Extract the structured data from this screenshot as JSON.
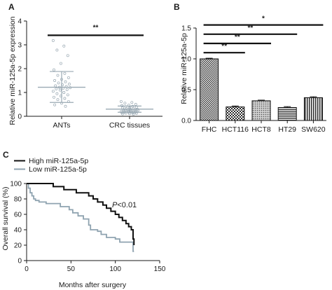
{
  "chart_data": [
    {
      "panel": "A",
      "type": "scatter",
      "categories": [
        "ANTs",
        "CRC tissues"
      ],
      "ylabel": "Relative miR-125a-5p expression",
      "ylim": [
        0,
        4
      ],
      "yticks": [
        "0",
        "1",
        "2",
        "3",
        "4"
      ],
      "summary": [
        {
          "category": "ANTs",
          "mean": 1.22,
          "sd_low": 0.58,
          "sd_high": 1.88
        },
        {
          "category": "CRC tissues",
          "mean": 0.3,
          "sd_low": 0.17,
          "sd_high": 0.43
        }
      ],
      "points": [
        {
          "category": "ANTs",
          "values": [
            3.18,
            2.95,
            2.78,
            2.55,
            2.22,
            1.95,
            1.8,
            1.72,
            1.62,
            1.55,
            1.5,
            1.45,
            1.4,
            1.35,
            1.32,
            1.28,
            1.25,
            1.22,
            1.2,
            1.18,
            1.15,
            1.12,
            1.1,
            1.05,
            1.0,
            0.95,
            0.9,
            0.85,
            0.8,
            0.75,
            0.7,
            0.62,
            0.55,
            0.48,
            0.42
          ]
        },
        {
          "category": "CRC tissues",
          "values": [
            0.62,
            0.58,
            0.55,
            0.5,
            0.47,
            0.45,
            0.42,
            0.4,
            0.38,
            0.36,
            0.35,
            0.33,
            0.32,
            0.3,
            0.29,
            0.28,
            0.27,
            0.26,
            0.25,
            0.24,
            0.23,
            0.22,
            0.21,
            0.2,
            0.19,
            0.18,
            0.17,
            0.16,
            0.15,
            0.14,
            0.13,
            0.12,
            0.11,
            0.1,
            0.09
          ]
        }
      ],
      "annotations": [
        {
          "between": [
            "ANTs",
            "CRC tissues"
          ],
          "label": "**",
          "y": 3.4
        }
      ]
    },
    {
      "panel": "B",
      "type": "bar",
      "categories": [
        "FHC",
        "HCT116",
        "HCT8",
        "HT29",
        "SW620"
      ],
      "values": [
        1.0,
        0.22,
        0.32,
        0.21,
        0.37
      ],
      "errors": [
        0.01,
        0.015,
        0.01,
        0.015,
        0.015
      ],
      "ylabel": "Relative miR-125a-5p",
      "ylim": [
        0,
        1.5
      ],
      "yticks": [
        "0.0",
        "0.5",
        "1.0",
        "1.5"
      ],
      "annotations": [
        {
          "between": [
            "FHC",
            "HCT116"
          ],
          "label": "**",
          "y": 1.1
        },
        {
          "between": [
            "FHC",
            "HCT8"
          ],
          "label": "**",
          "y": 1.25
        },
        {
          "between": [
            "FHC",
            "HT29"
          ],
          "label": "**",
          "y": 1.4
        },
        {
          "between": [
            "FHC",
            "SW620"
          ],
          "label": "*",
          "y": 1.55
        }
      ]
    },
    {
      "panel": "C",
      "type": "line",
      "xlabel": "Months after surgery",
      "ylabel": "Overall survival (%)",
      "xlim": [
        0,
        150
      ],
      "ylim": [
        0,
        100
      ],
      "xticks": [
        "0",
        "50",
        "100",
        "150"
      ],
      "yticks": [
        "0",
        "20",
        "40",
        "60",
        "80",
        "100"
      ],
      "series": [
        {
          "name": "High miR-125a-5p",
          "color": "#111111",
          "x": [
            0,
            18,
            30,
            42,
            56,
            62,
            70,
            75,
            80,
            86,
            90,
            95,
            100,
            104,
            108,
            112,
            115,
            118,
            120,
            121
          ],
          "y": [
            100,
            100,
            96,
            92,
            88,
            88,
            84,
            80,
            76,
            72,
            68,
            64,
            60,
            56,
            52,
            48,
            44,
            40,
            28,
            20
          ]
        },
        {
          "name": "Low miR-125a-5p",
          "color": "#8fa3b0",
          "x": [
            0,
            2,
            4,
            6,
            8,
            10,
            14,
            22,
            30,
            38,
            44,
            48,
            52,
            58,
            64,
            70,
            72,
            80,
            84,
            90,
            96,
            100,
            105,
            110,
            118,
            120,
            121
          ],
          "y": [
            100,
            94,
            88,
            84,
            80,
            78,
            76,
            74,
            74,
            70,
            70,
            66,
            62,
            58,
            54,
            46,
            40,
            38,
            34,
            30,
            30,
            28,
            24,
            24,
            24,
            12,
            12
          ]
        }
      ],
      "annotation": "P<0.01",
      "legend_position": "top-left"
    }
  ]
}
